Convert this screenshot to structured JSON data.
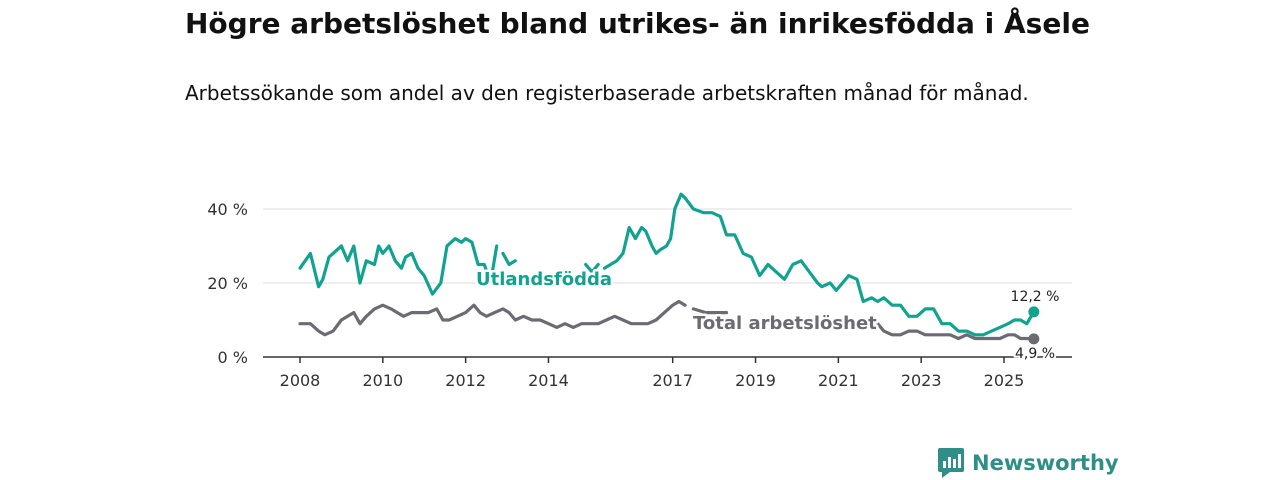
{
  "title": "Högre arbetslöshet bland utrikes- än inrikesfödda i Åsele",
  "subtitle": "Arbetssökande som andel av den registerbaserade arbetskraften månad för månad.",
  "brand": {
    "name": "Newsworthy",
    "icon": "newsworthy-logo-icon"
  },
  "colors": {
    "utlandsfodda": "#12a290",
    "total": "#6b6b73",
    "grid": "#dddddd",
    "axis": "#333333",
    "brand": "#2f8f86"
  },
  "chart_data": {
    "type": "line",
    "title": "Högre arbetslöshet bland utrikes- än inrikesfödda i Åsele",
    "subtitle": "Arbetssökande som andel av den registerbaserade arbetskraften månad för månad.",
    "xlabel": "",
    "ylabel": "",
    "ylim": [
      0,
      44
    ],
    "y_ticks": [
      0,
      20,
      40
    ],
    "y_tick_labels": [
      "0 %",
      "20 %",
      "40 %"
    ],
    "x_ticks": [
      2008,
      2010,
      2012,
      2014,
      2017,
      2019,
      2021,
      2023,
      2025
    ],
    "x_tick_labels": [
      "2008",
      "2010",
      "2012",
      "2014",
      "2017",
      "2019",
      "2021",
      "2023",
      "2025"
    ],
    "grid": true,
    "series": [
      {
        "name": "Utlandsfödda",
        "label": "Utlandsfödda",
        "end_label": "12,2 %",
        "end_value": 12.2,
        "x": [
          2008.0,
          2008.25,
          2008.45,
          2008.55,
          2008.7,
          2009.0,
          2009.15,
          2009.3,
          2009.45,
          2009.6,
          2009.8,
          2009.9,
          2010.0,
          2010.15,
          2010.3,
          2010.45,
          2010.55,
          2010.7,
          2010.85,
          2011.0,
          2011.2,
          2011.4,
          2011.55,
          2011.75,
          2011.9,
          2012.0,
          2012.15,
          2012.3,
          2012.45,
          2012.6,
          2012.75,
          null,
          2012.9,
          2013.05,
          2013.2,
          null,
          2014.9,
          2015.05,
          2015.2,
          null,
          2015.35,
          2015.5,
          2015.65,
          2015.8,
          2015.95,
          2016.1,
          2016.25,
          2016.35,
          2016.5,
          2016.6,
          2016.7,
          2016.85,
          2016.95,
          2017.05,
          2017.2,
          2017.3,
          2017.5,
          2017.75,
          2017.95,
          2018.15,
          2018.3,
          2018.5,
          2018.7,
          2018.9,
          2019.1,
          2019.3,
          2019.5,
          2019.7,
          2019.9,
          2020.1,
          2020.3,
          2020.5,
          2020.6,
          2020.8,
          2020.95,
          2021.1,
          2021.25,
          2021.45,
          2021.6,
          2021.8,
          2021.95,
          2022.1,
          2022.3,
          2022.5,
          2022.7,
          2022.9,
          2023.1,
          2023.3,
          2023.5,
          2023.7,
          2023.9,
          2024.1,
          2024.3,
          2024.5,
          2024.7,
          2024.9,
          2025.1,
          2025.25,
          2025.4,
          2025.55,
          2025.72
        ],
        "values": [
          24,
          28,
          19,
          21,
          27,
          30,
          26,
          30,
          20,
          26,
          25,
          30,
          28,
          30,
          26,
          24,
          27,
          28,
          24,
          22,
          17,
          20,
          30,
          32,
          31,
          32,
          31,
          25,
          25,
          20,
          30,
          null,
          28,
          25,
          26,
          null,
          25,
          23,
          25,
          null,
          24,
          25,
          26,
          28,
          35,
          32,
          35,
          34,
          30,
          28,
          29,
          30,
          32,
          40,
          44,
          43,
          40,
          39,
          39,
          38,
          33,
          33,
          28,
          27,
          22,
          25,
          23,
          21,
          25,
          26,
          23,
          20,
          19,
          20,
          18,
          20,
          22,
          21,
          15,
          16,
          15,
          16,
          14,
          14,
          11,
          11,
          13,
          13,
          9,
          9,
          7,
          7,
          6,
          6,
          7,
          8,
          9,
          10,
          10,
          9,
          12.2
        ]
      },
      {
        "name": "Total arbetslöshet",
        "label": "Total arbetslöshet",
        "end_label": "4,9 %",
        "end_value": 4.9,
        "x": [
          2008.0,
          2008.25,
          2008.45,
          2008.6,
          2008.8,
          2009.0,
          2009.15,
          2009.3,
          2009.45,
          2009.6,
          2009.8,
          2010.0,
          2010.2,
          2010.35,
          2010.5,
          2010.7,
          2010.9,
          2011.1,
          2011.3,
          2011.45,
          2011.6,
          2011.8,
          2012.0,
          2012.2,
          2012.35,
          2012.5,
          2012.7,
          2012.9,
          2013.05,
          2013.2,
          2013.4,
          2013.6,
          2013.8,
          2014.0,
          2014.2,
          2014.4,
          2014.6,
          2014.8,
          2015.0,
          2015.2,
          2015.4,
          2015.6,
          2015.8,
          2016.0,
          2016.2,
          2016.4,
          2016.6,
          2016.8,
          2017.0,
          2017.15,
          2017.3,
          null,
          2017.5,
          2017.8,
          2018.0,
          2018.3,
          null,
          2021.95,
          2022.1,
          2022.3,
          2022.5,
          2022.7,
          2022.9,
          2023.1,
          2023.3,
          2023.5,
          2023.7,
          2023.9,
          2024.1,
          2024.3,
          2024.5,
          2024.7,
          2024.9,
          2025.1,
          2025.25,
          2025.4,
          2025.55,
          2025.72
        ],
        "values": [
          9,
          9,
          7,
          6,
          7,
          10,
          11,
          12,
          9,
          11,
          13,
          14,
          13,
          12,
          11,
          12,
          12,
          12,
          13,
          10,
          10,
          11,
          12,
          14,
          12,
          11,
          12,
          13,
          12,
          10,
          11,
          10,
          10,
          9,
          8,
          9,
          8,
          9,
          9,
          9,
          10,
          11,
          10,
          9,
          9,
          9,
          10,
          12,
          14,
          15,
          14,
          null,
          13,
          12,
          12,
          12,
          null,
          9,
          7,
          6,
          6,
          7,
          7,
          6,
          6,
          6,
          6,
          5,
          6,
          5,
          5,
          5,
          5,
          6,
          6,
          5,
          5,
          4.9
        ]
      }
    ]
  }
}
